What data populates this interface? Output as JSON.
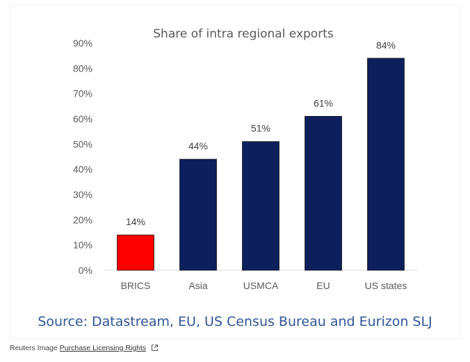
{
  "chart_data": {
    "type": "bar",
    "title": "Share of intra regional exports",
    "categories": [
      "BRICS",
      "Asia",
      "USMCA",
      "EU",
      "US states"
    ],
    "values": [
      14,
      44,
      51,
      61,
      84
    ],
    "data_labels": [
      "14%",
      "44%",
      "51%",
      "61%",
      "84%"
    ],
    "bar_colors": [
      "#ff0000",
      "#0d1f5c",
      "#0d1f5c",
      "#0d1f5c",
      "#0d1f5c"
    ],
    "ylim": [
      0,
      90
    ],
    "yticks": [
      "0%",
      "10%",
      "20%",
      "30%",
      "40%",
      "50%",
      "60%",
      "70%",
      "80%",
      "90%"
    ],
    "grid": false
  },
  "source_text": "Source: Datastream, EU, US Census Bureau and Eurizon SLJ",
  "credit": {
    "prefix": "Reuters Image",
    "link_text": "Purchase Licensing Rights"
  }
}
